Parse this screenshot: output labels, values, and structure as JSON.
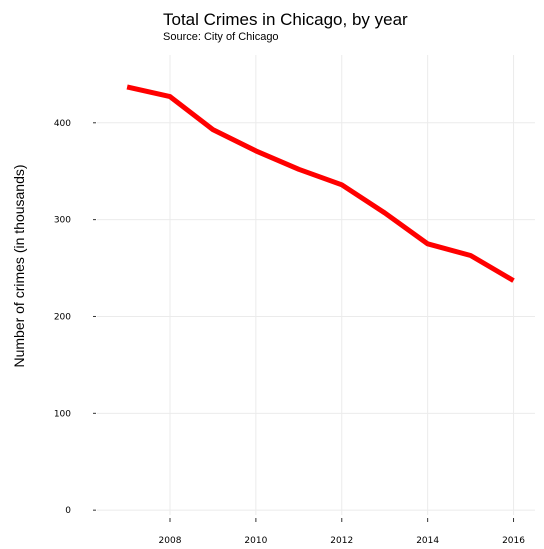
{
  "chart_data": {
    "type": "line",
    "title": "Total Crimes in Chicago, by year",
    "subtitle": "Source: City of Chicago",
    "xlabel": "",
    "ylabel": "Number of crimes (in thousands)",
    "x": [
      2007,
      2008,
      2009,
      2010,
      2011,
      2012,
      2013,
      2014,
      2015,
      2016
    ],
    "series": [
      {
        "values": [
          437,
          427,
          393,
          371,
          352,
          336,
          307,
          275,
          263,
          237
        ]
      }
    ],
    "xlim": [
      2006.3,
      2016.5
    ],
    "ylim": [
      -5,
      470
    ],
    "xticks": [
      "2008",
      "2010",
      "2012",
      "2014",
      "2016"
    ],
    "xtick_values": [
      2008,
      2010,
      2012,
      2014,
      2016
    ],
    "yticks": [
      "0",
      "100",
      "200",
      "300",
      "400"
    ],
    "ytick_values": [
      0,
      100,
      200,
      300,
      400
    ],
    "grid": true,
    "line_color": "#ff0000"
  }
}
